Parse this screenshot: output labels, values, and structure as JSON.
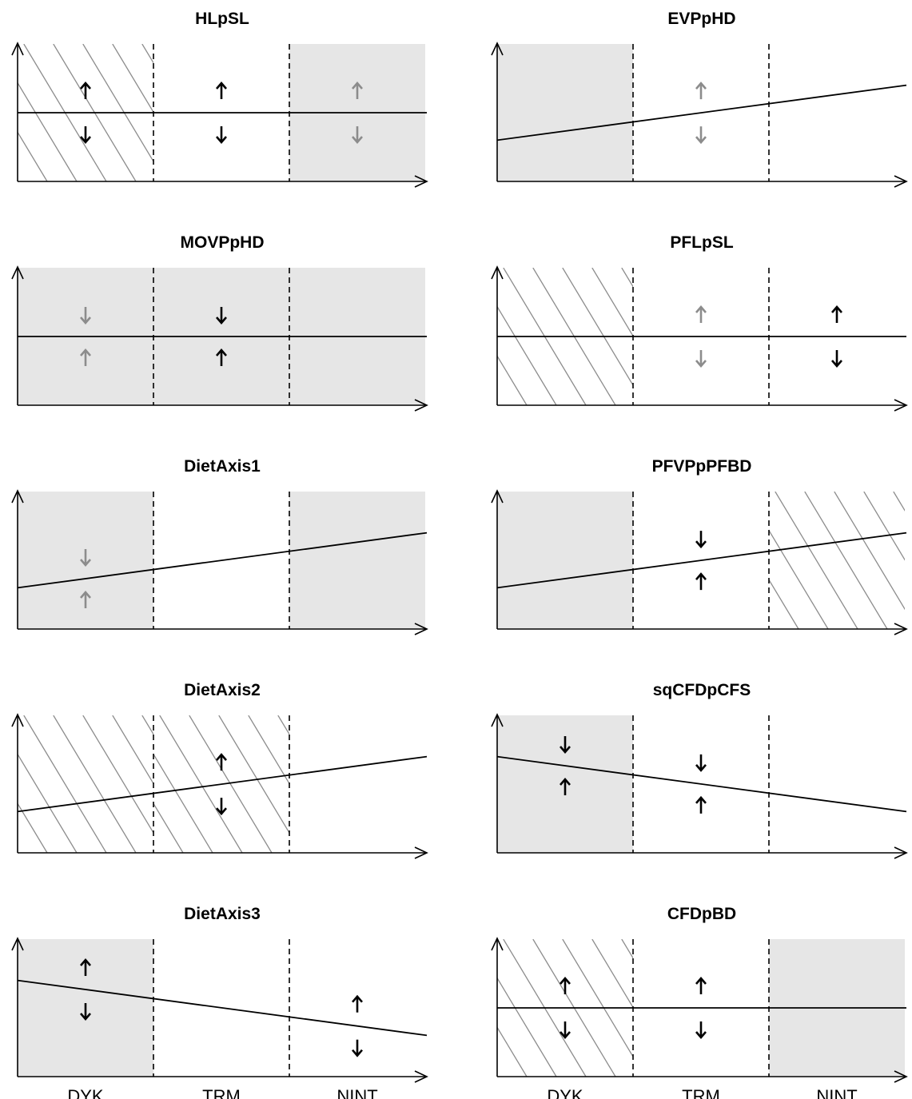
{
  "colors": {
    "shade": "#e6e6e6",
    "hatch": "#8c8c8c",
    "line": "#000000",
    "arrow_dark": "#000000",
    "arrow_light": "#8c8c8c",
    "axis": "#000000"
  },
  "chart_data": [
    {
      "type": "line",
      "title": "HLpSL",
      "categories": [
        "DYK",
        "TRM",
        "NINT"
      ],
      "show_category_labels": false,
      "line_endpoints": [
        0.5,
        0.5
      ],
      "regions": [
        "hatch",
        "none",
        "shade"
      ],
      "arrows": [
        {
          "region": "DYK",
          "pair": "out",
          "tone": "dark"
        },
        {
          "region": "TRM",
          "pair": "out",
          "tone": "dark"
        },
        {
          "region": "NINT",
          "pair": "out",
          "tone": "light"
        }
      ]
    },
    {
      "type": "line",
      "title": "EVPpHD",
      "categories": [
        "DYK",
        "TRM",
        "NINT"
      ],
      "show_category_labels": false,
      "line_endpoints": [
        0.3,
        0.7
      ],
      "regions": [
        "shade",
        "none",
        "none"
      ],
      "arrows": [
        {
          "region": "TRM",
          "pair": "out",
          "tone": "light"
        }
      ]
    },
    {
      "type": "line",
      "title": "MOVPpHD",
      "categories": [
        "DYK",
        "TRM",
        "NINT"
      ],
      "show_category_labels": false,
      "line_endpoints": [
        0.5,
        0.5
      ],
      "regions": [
        "shade",
        "shade",
        "shade"
      ],
      "arrows": [
        {
          "region": "DYK",
          "pair": "in",
          "tone": "light"
        },
        {
          "region": "TRM",
          "pair": "in",
          "tone": "dark"
        }
      ]
    },
    {
      "type": "line",
      "title": "PFLpSL",
      "categories": [
        "DYK",
        "TRM",
        "NINT"
      ],
      "show_category_labels": false,
      "line_endpoints": [
        0.5,
        0.5
      ],
      "regions": [
        "hatch",
        "none",
        "none"
      ],
      "arrows": [
        {
          "region": "TRM",
          "pair": "out",
          "tone": "light"
        },
        {
          "region": "NINT",
          "pair": "out",
          "tone": "dark"
        }
      ]
    },
    {
      "type": "line",
      "title": "DietAxis1",
      "categories": [
        "DYK",
        "TRM",
        "NINT"
      ],
      "show_category_labels": false,
      "line_endpoints": [
        0.3,
        0.7
      ],
      "regions": [
        "shade",
        "none",
        "shade"
      ],
      "arrows": [
        {
          "region": "DYK",
          "pair": "in",
          "tone": "light"
        }
      ]
    },
    {
      "type": "line",
      "title": "PFVPpPFBD",
      "categories": [
        "DYK",
        "TRM",
        "NINT"
      ],
      "show_category_labels": false,
      "line_endpoints": [
        0.3,
        0.7
      ],
      "regions": [
        "shade",
        "none",
        "hatch"
      ],
      "arrows": [
        {
          "region": "TRM",
          "pair": "in",
          "tone": "dark"
        }
      ]
    },
    {
      "type": "line",
      "title": "DietAxis2",
      "categories": [
        "DYK",
        "TRM",
        "NINT"
      ],
      "show_category_labels": false,
      "line_endpoints": [
        0.3,
        0.7
      ],
      "regions": [
        "hatch",
        "hatch",
        "none"
      ],
      "arrows": [
        {
          "region": "TRM",
          "pair": "out",
          "tone": "dark"
        }
      ]
    },
    {
      "type": "line",
      "title": "sqCFDpCFS",
      "categories": [
        "DYK",
        "TRM",
        "NINT"
      ],
      "show_category_labels": false,
      "line_endpoints": [
        0.7,
        0.3
      ],
      "regions": [
        "shade",
        "none",
        "none"
      ],
      "arrows": [
        {
          "region": "DYK",
          "pair": "in",
          "tone": "dark"
        },
        {
          "region": "TRM",
          "pair": "in",
          "tone": "dark"
        }
      ]
    },
    {
      "type": "line",
      "title": "DietAxis3",
      "categories": [
        "DYK",
        "TRM",
        "NINT"
      ],
      "show_category_labels": true,
      "line_endpoints": [
        0.7,
        0.3
      ],
      "regions": [
        "shade",
        "none",
        "none"
      ],
      "arrows": [
        {
          "region": "DYK",
          "pair": "out",
          "tone": "dark"
        },
        {
          "region": "NINT",
          "pair": "out",
          "tone": "dark"
        }
      ]
    },
    {
      "type": "line",
      "title": "CFDpBD",
      "categories": [
        "DYK",
        "TRM",
        "NINT"
      ],
      "show_category_labels": true,
      "line_endpoints": [
        0.5,
        0.5
      ],
      "regions": [
        "hatch",
        "none",
        "shade"
      ],
      "arrows": [
        {
          "region": "DYK",
          "pair": "out",
          "tone": "dark"
        },
        {
          "region": "TRM",
          "pair": "out",
          "tone": "dark"
        }
      ]
    }
  ]
}
